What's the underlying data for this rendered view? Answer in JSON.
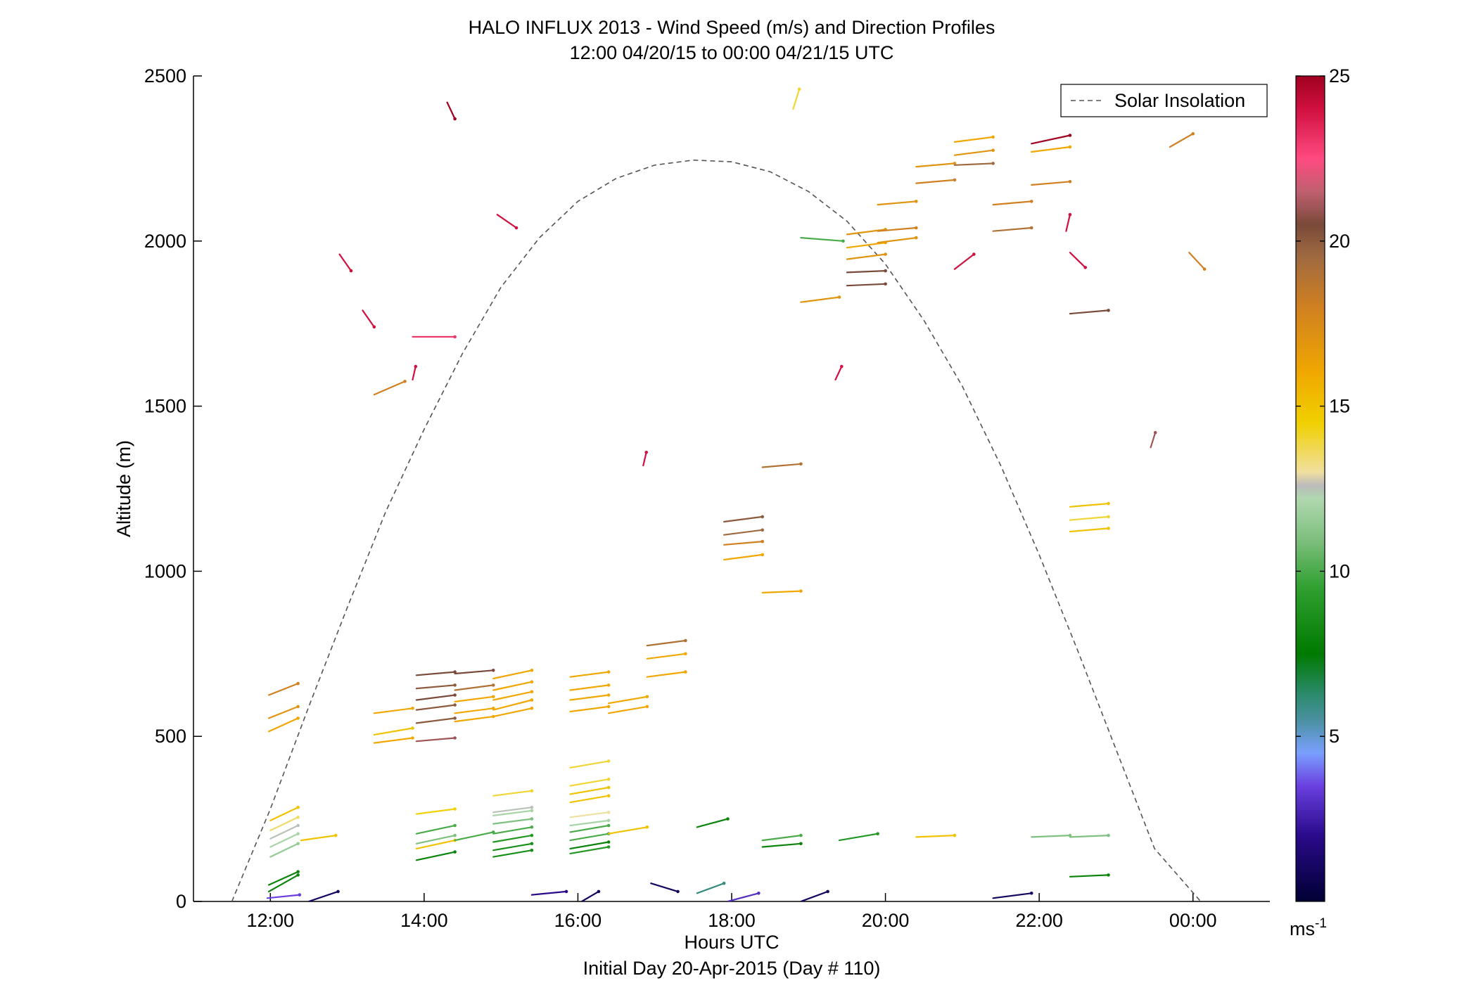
{
  "chart_data": {
    "type": "scatter",
    "title": "HALO INFLUX 2013 - Wind Speed (m/s) and Direction Profiles",
    "subtitle": "12:00 04/20/15 to 00:00 04/21/15  UTC",
    "xlabel": "Hours UTC",
    "xlabel2": "Initial Day 20-Apr-2015 (Day # 110)",
    "ylabel": "Altitude (m)",
    "xlim": [
      11.0,
      25.0
    ],
    "ylim": [
      0,
      2500
    ],
    "x_ticks": [
      {
        "value": 12,
        "label": "12:00"
      },
      {
        "value": 14,
        "label": "14:00"
      },
      {
        "value": 16,
        "label": "16:00"
      },
      {
        "value": 18,
        "label": "18:00"
      },
      {
        "value": 20,
        "label": "20:00"
      },
      {
        "value": 22,
        "label": "22:00"
      },
      {
        "value": 24,
        "label": "00:00"
      }
    ],
    "y_ticks": [
      {
        "value": 0,
        "label": "0"
      },
      {
        "value": 500,
        "label": "500"
      },
      {
        "value": 1000,
        "label": "1000"
      },
      {
        "value": 1500,
        "label": "1500"
      },
      {
        "value": 2000,
        "label": "2000"
      },
      {
        "value": 2500,
        "label": "2500"
      }
    ],
    "grid": false,
    "legend": {
      "position": "top-right",
      "entries": [
        {
          "name": "Solar Insolation",
          "style": "dashed",
          "color": "#666666"
        }
      ]
    },
    "colorbar": {
      "min": 0,
      "max": 25,
      "ticks": [
        {
          "value": 5,
          "label": "5"
        },
        {
          "value": 10,
          "label": "10"
        },
        {
          "value": 15,
          "label": "15"
        },
        {
          "value": 20,
          "label": "20"
        },
        {
          "value": 25,
          "label": "25"
        }
      ],
      "unit_label": "ms",
      "unit_exponent": "-1",
      "stops": [
        {
          "v": 0,
          "c": "#000033"
        },
        {
          "v": 2,
          "c": "#2a0a8a"
        },
        {
          "v": 3.5,
          "c": "#6a40e0"
        },
        {
          "v": 4.5,
          "c": "#7aa0ff"
        },
        {
          "v": 5.5,
          "c": "#4a90a0"
        },
        {
          "v": 6.3,
          "c": "#2a8a6a"
        },
        {
          "v": 7.5,
          "c": "#007a00"
        },
        {
          "v": 9.5,
          "c": "#30a030"
        },
        {
          "v": 11,
          "c": "#80c080"
        },
        {
          "v": 12.2,
          "c": "#b0d8b0"
        },
        {
          "v": 12.6,
          "c": "#bbbbbb"
        },
        {
          "v": 13,
          "c": "#f0e0a0"
        },
        {
          "v": 14.5,
          "c": "#f0d000"
        },
        {
          "v": 16,
          "c": "#f0a800"
        },
        {
          "v": 18,
          "c": "#d08020"
        },
        {
          "v": 19.5,
          "c": "#a06a40"
        },
        {
          "v": 20.5,
          "c": "#7a4a3a"
        },
        {
          "v": 21.5,
          "c": "#c06070"
        },
        {
          "v": 22.5,
          "c": "#ff4a80"
        },
        {
          "v": 24,
          "c": "#d01040"
        },
        {
          "v": 25,
          "c": "#a00020"
        }
      ]
    },
    "solar_insolation": {
      "name": "Solar Insolation",
      "points": [
        [
          11.5,
          0
        ],
        [
          12.0,
          280
        ],
        [
          12.5,
          590
        ],
        [
          13.0,
          890
        ],
        [
          13.5,
          1180
        ],
        [
          14.0,
          1430
        ],
        [
          14.5,
          1660
        ],
        [
          15.0,
          1860
        ],
        [
          15.5,
          2010
        ],
        [
          16.0,
          2120
        ],
        [
          16.5,
          2190
        ],
        [
          17.0,
          2230
        ],
        [
          17.5,
          2245
        ],
        [
          18.0,
          2240
        ],
        [
          18.5,
          2210
        ],
        [
          19.0,
          2150
        ],
        [
          19.5,
          2060
        ],
        [
          20.0,
          1930
        ],
        [
          20.5,
          1760
        ],
        [
          21.0,
          1560
        ],
        [
          21.5,
          1320
        ],
        [
          22.0,
          1050
        ],
        [
          22.5,
          760
        ],
        [
          23.0,
          460
        ],
        [
          23.5,
          160
        ],
        [
          24.1,
          0
        ]
      ]
    },
    "wind_vectors": [
      {
        "t": 11.96,
        "alt": 10,
        "u": 0.42,
        "v": 10,
        "spd": 3.5
      },
      {
        "t": 11.98,
        "alt": 30,
        "u": 0.38,
        "v": 50,
        "spd": 8
      },
      {
        "t": 11.98,
        "alt": 50,
        "u": 0.38,
        "v": 40,
        "spd": 8
      },
      {
        "t": 12.0,
        "alt": 135,
        "u": 0.36,
        "v": 40,
        "spd": 11.5
      },
      {
        "t": 12.0,
        "alt": 165,
        "u": 0.36,
        "v": 40,
        "spd": 12
      },
      {
        "t": 12.0,
        "alt": 190,
        "u": 0.36,
        "v": 40,
        "spd": 12.5
      },
      {
        "t": 12.0,
        "alt": 215,
        "u": 0.36,
        "v": 40,
        "spd": 13.5
      },
      {
        "t": 12.0,
        "alt": 245,
        "u": 0.36,
        "v": 40,
        "spd": 15
      },
      {
        "t": 12.4,
        "alt": 185,
        "u": 0.45,
        "v": 15,
        "spd": 15
      },
      {
        "t": 11.98,
        "alt": 515,
        "u": 0.38,
        "v": 40,
        "spd": 16
      },
      {
        "t": 11.98,
        "alt": 555,
        "u": 0.38,
        "v": 35,
        "spd": 17
      },
      {
        "t": 11.98,
        "alt": 625,
        "u": 0.38,
        "v": 35,
        "spd": 18
      },
      {
        "t": 12.5,
        "alt": 0,
        "u": 0.38,
        "v": 30,
        "spd": 1
      },
      {
        "t": 13.35,
        "alt": 480,
        "u": 0.5,
        "v": 15,
        "spd": 16
      },
      {
        "t": 13.35,
        "alt": 505,
        "u": 0.5,
        "v": 20,
        "spd": 15
      },
      {
        "t": 13.35,
        "alt": 570,
        "u": 0.5,
        "v": 15,
        "spd": 16
      },
      {
        "t": 13.35,
        "alt": 1535,
        "u": 0.4,
        "v": 40,
        "spd": 18
      },
      {
        "t": 12.9,
        "alt": 1960,
        "u": 0.15,
        "v": -50,
        "spd": 24
      },
      {
        "t": 13.2,
        "alt": 1790,
        "u": 0.15,
        "v": -50,
        "spd": 24
      },
      {
        "t": 13.85,
        "alt": 1580,
        "u": 0.04,
        "v": 40,
        "spd": 24
      },
      {
        "t": 13.9,
        "alt": 125,
        "u": 0.5,
        "v": 25,
        "spd": 8
      },
      {
        "t": 13.9,
        "alt": 160,
        "u": 0.5,
        "v": 25,
        "spd": 15
      },
      {
        "t": 13.9,
        "alt": 175,
        "u": 0.5,
        "v": 25,
        "spd": 11
      },
      {
        "t": 13.9,
        "alt": 205,
        "u": 0.5,
        "v": 25,
        "spd": 10
      },
      {
        "t": 13.9,
        "alt": 265,
        "u": 0.5,
        "v": 15,
        "spd": 14.5
      },
      {
        "t": 13.9,
        "alt": 485,
        "u": 0.5,
        "v": 10,
        "spd": 21
      },
      {
        "t": 13.9,
        "alt": 540,
        "u": 0.5,
        "v": 15,
        "spd": 20
      },
      {
        "t": 13.9,
        "alt": 580,
        "u": 0.5,
        "v": 15,
        "spd": 20
      },
      {
        "t": 13.9,
        "alt": 610,
        "u": 0.5,
        "v": 15,
        "spd": 20.5
      },
      {
        "t": 13.9,
        "alt": 645,
        "u": 0.5,
        "v": 10,
        "spd": 20
      },
      {
        "t": 13.9,
        "alt": 685,
        "u": 0.5,
        "v": 10,
        "spd": 20.5
      },
      {
        "t": 13.85,
        "alt": 1710,
        "u": 0.55,
        "v": 0,
        "spd": 23
      },
      {
        "t": 14.3,
        "alt": 2420,
        "u": 0.1,
        "v": -50,
        "spd": 25
      },
      {
        "t": 14.4,
        "alt": 185,
        "u": 0.5,
        "v": 25,
        "spd": 10
      },
      {
        "t": 14.4,
        "alt": 545,
        "u": 0.5,
        "v": 15,
        "spd": 16
      },
      {
        "t": 14.4,
        "alt": 570,
        "u": 0.5,
        "v": 15,
        "spd": 16
      },
      {
        "t": 14.4,
        "alt": 605,
        "u": 0.5,
        "v": 15,
        "spd": 16
      },
      {
        "t": 14.4,
        "alt": 640,
        "u": 0.5,
        "v": 15,
        "spd": 19
      },
      {
        "t": 14.4,
        "alt": 690,
        "u": 0.5,
        "v": 10,
        "spd": 20.5
      },
      {
        "t": 14.9,
        "alt": 135,
        "u": 0.5,
        "v": 20,
        "spd": 8.5
      },
      {
        "t": 14.9,
        "alt": 155,
        "u": 0.5,
        "v": 20,
        "spd": 8.5
      },
      {
        "t": 14.9,
        "alt": 180,
        "u": 0.5,
        "v": 20,
        "spd": 9
      },
      {
        "t": 14.9,
        "alt": 205,
        "u": 0.5,
        "v": 20,
        "spd": 10
      },
      {
        "t": 14.9,
        "alt": 235,
        "u": 0.5,
        "v": 15,
        "spd": 11
      },
      {
        "t": 14.9,
        "alt": 260,
        "u": 0.5,
        "v": 15,
        "spd": 12
      },
      {
        "t": 14.9,
        "alt": 270,
        "u": 0.5,
        "v": 15,
        "spd": 12.5
      },
      {
        "t": 14.9,
        "alt": 320,
        "u": 0.5,
        "v": 15,
        "spd": 14
      },
      {
        "t": 14.9,
        "alt": 560,
        "u": 0.5,
        "v": 25,
        "spd": 16
      },
      {
        "t": 14.9,
        "alt": 580,
        "u": 0.5,
        "v": 30,
        "spd": 16
      },
      {
        "t": 14.9,
        "alt": 610,
        "u": 0.5,
        "v": 25,
        "spd": 16
      },
      {
        "t": 14.9,
        "alt": 640,
        "u": 0.5,
        "v": 25,
        "spd": 16
      },
      {
        "t": 14.9,
        "alt": 675,
        "u": 0.5,
        "v": 25,
        "spd": 16
      },
      {
        "t": 14.95,
        "alt": 2080,
        "u": 0.25,
        "v": -40,
        "spd": 24
      },
      {
        "t": 15.4,
        "alt": 20,
        "u": 0.45,
        "v": 10,
        "spd": 2
      },
      {
        "t": 16.05,
        "alt": 0,
        "u": 0.22,
        "v": 30,
        "spd": 1
      },
      {
        "t": 15.9,
        "alt": 145,
        "u": 0.5,
        "v": 20,
        "spd": 9
      },
      {
        "t": 15.9,
        "alt": 160,
        "u": 0.5,
        "v": 20,
        "spd": 8
      },
      {
        "t": 15.9,
        "alt": 185,
        "u": 0.5,
        "v": 20,
        "spd": 10
      },
      {
        "t": 15.9,
        "alt": 210,
        "u": 0.5,
        "v": 20,
        "spd": 10
      },
      {
        "t": 15.9,
        "alt": 230,
        "u": 0.5,
        "v": 15,
        "spd": 12
      },
      {
        "t": 15.9,
        "alt": 255,
        "u": 0.5,
        "v": 15,
        "spd": 13
      },
      {
        "t": 15.9,
        "alt": 300,
        "u": 0.5,
        "v": 20,
        "spd": 15
      },
      {
        "t": 15.9,
        "alt": 325,
        "u": 0.5,
        "v": 20,
        "spd": 15
      },
      {
        "t": 15.9,
        "alt": 350,
        "u": 0.5,
        "v": 20,
        "spd": 14
      },
      {
        "t": 15.9,
        "alt": 405,
        "u": 0.5,
        "v": 20,
        "spd": 14
      },
      {
        "t": 15.9,
        "alt": 575,
        "u": 0.5,
        "v": 15,
        "spd": 16
      },
      {
        "t": 15.9,
        "alt": 610,
        "u": 0.5,
        "v": 15,
        "spd": 16
      },
      {
        "t": 15.9,
        "alt": 640,
        "u": 0.5,
        "v": 15,
        "spd": 16
      },
      {
        "t": 15.9,
        "alt": 680,
        "u": 0.5,
        "v": 15,
        "spd": 16
      },
      {
        "t": 16.4,
        "alt": 205,
        "u": 0.5,
        "v": 20,
        "spd": 15
      },
      {
        "t": 16.4,
        "alt": 570,
        "u": 0.5,
        "v": 20,
        "spd": 16
      },
      {
        "t": 16.4,
        "alt": 600,
        "u": 0.5,
        "v": 20,
        "spd": 16
      },
      {
        "t": 16.85,
        "alt": 1320,
        "u": 0.04,
        "v": 40,
        "spd": 24
      },
      {
        "t": 16.9,
        "alt": 680,
        "u": 0.5,
        "v": 15,
        "spd": 16
      },
      {
        "t": 16.9,
        "alt": 735,
        "u": 0.5,
        "v": 15,
        "spd": 16
      },
      {
        "t": 16.9,
        "alt": 775,
        "u": 0.5,
        "v": 15,
        "spd": 19
      },
      {
        "t": 16.95,
        "alt": 55,
        "u": 0.35,
        "v": -25,
        "spd": 1
      },
      {
        "t": 17.55,
        "alt": 225,
        "u": 0.4,
        "v": 25,
        "spd": 8
      },
      {
        "t": 17.55,
        "alt": 25,
        "u": 0.35,
        "v": 30,
        "spd": 6
      },
      {
        "t": 17.95,
        "alt": 0,
        "u": 0.4,
        "v": 25,
        "spd": 3
      },
      {
        "t": 17.9,
        "alt": 1035,
        "u": 0.5,
        "v": 15,
        "spd": 16
      },
      {
        "t": 17.9,
        "alt": 1080,
        "u": 0.5,
        "v": 10,
        "spd": 18
      },
      {
        "t": 17.9,
        "alt": 1110,
        "u": 0.5,
        "v": 15,
        "spd": 19.5
      },
      {
        "t": 17.9,
        "alt": 1150,
        "u": 0.5,
        "v": 15,
        "spd": 20
      },
      {
        "t": 18.4,
        "alt": 165,
        "u": 0.5,
        "v": 10,
        "spd": 8
      },
      {
        "t": 18.4,
        "alt": 185,
        "u": 0.5,
        "v": 15,
        "spd": 10
      },
      {
        "t": 18.4,
        "alt": 935,
        "u": 0.5,
        "v": 5,
        "spd": 16
      },
      {
        "t": 18.4,
        "alt": 1315,
        "u": 0.5,
        "v": 10,
        "spd": 19
      },
      {
        "t": 18.8,
        "alt": 2400,
        "u": 0.08,
        "v": 60,
        "spd": 14
      },
      {
        "t": 18.9,
        "alt": 0,
        "u": 0.35,
        "v": 30,
        "spd": 1
      },
      {
        "t": 18.9,
        "alt": 2010,
        "u": 0.55,
        "v": -10,
        "spd": 10
      },
      {
        "t": 18.9,
        "alt": 1815,
        "u": 0.5,
        "v": 15,
        "spd": 17
      },
      {
        "t": 19.4,
        "alt": 185,
        "u": 0.5,
        "v": 20,
        "spd": 9
      },
      {
        "t": 19.35,
        "alt": 1580,
        "u": 0.08,
        "v": 40,
        "spd": 24
      },
      {
        "t": 19.5,
        "alt": 1865,
        "u": 0.5,
        "v": 5,
        "spd": 20.5
      },
      {
        "t": 19.5,
        "alt": 1905,
        "u": 0.5,
        "v": 5,
        "spd": 20.5
      },
      {
        "t": 19.5,
        "alt": 1945,
        "u": 0.5,
        "v": 15,
        "spd": 17
      },
      {
        "t": 19.5,
        "alt": 1980,
        "u": 0.5,
        "v": 15,
        "spd": 16
      },
      {
        "t": 19.5,
        "alt": 2020,
        "u": 0.5,
        "v": 15,
        "spd": 17
      },
      {
        "t": 19.9,
        "alt": 1995,
        "u": 0.5,
        "v": 15,
        "spd": 17
      },
      {
        "t": 19.9,
        "alt": 2030,
        "u": 0.5,
        "v": 10,
        "spd": 18
      },
      {
        "t": 19.9,
        "alt": 2110,
        "u": 0.5,
        "v": 10,
        "spd": 17
      },
      {
        "t": 20.4,
        "alt": 195,
        "u": 0.5,
        "v": 5,
        "spd": 15
      },
      {
        "t": 20.4,
        "alt": 2175,
        "u": 0.5,
        "v": 10,
        "spd": 18
      },
      {
        "t": 20.4,
        "alt": 2225,
        "u": 0.5,
        "v": 10,
        "spd": 17
      },
      {
        "t": 20.9,
        "alt": 1915,
        "u": 0.25,
        "v": 45,
        "spd": 24
      },
      {
        "t": 20.9,
        "alt": 2230,
        "u": 0.5,
        "v": 5,
        "spd": 19.5
      },
      {
        "t": 20.9,
        "alt": 2260,
        "u": 0.5,
        "v": 15,
        "spd": 17
      },
      {
        "t": 20.9,
        "alt": 2300,
        "u": 0.5,
        "v": 15,
        "spd": 16
      },
      {
        "t": 21.4,
        "alt": 10,
        "u": 0.5,
        "v": 15,
        "spd": 1
      },
      {
        "t": 21.4,
        "alt": 2030,
        "u": 0.5,
        "v": 10,
        "spd": 19
      },
      {
        "t": 21.4,
        "alt": 2110,
        "u": 0.5,
        "v": 10,
        "spd": 18
      },
      {
        "t": 21.9,
        "alt": 195,
        "u": 0.5,
        "v": 5,
        "spd": 11
      },
      {
        "t": 21.9,
        "alt": 2170,
        "u": 0.5,
        "v": 10,
        "spd": 18
      },
      {
        "t": 21.9,
        "alt": 2270,
        "u": 0.5,
        "v": 15,
        "spd": 16
      },
      {
        "t": 21.9,
        "alt": 2295,
        "u": 0.5,
        "v": 25,
        "spd": 25
      },
      {
        "t": 22.35,
        "alt": 2030,
        "u": 0.05,
        "v": 50,
        "spd": 24
      },
      {
        "t": 22.4,
        "alt": 1965,
        "u": 0.2,
        "v": -45,
        "spd": 24
      },
      {
        "t": 22.4,
        "alt": 1780,
        "u": 0.5,
        "v": 10,
        "spd": 20.5
      },
      {
        "t": 22.4,
        "alt": 1120,
        "u": 0.5,
        "v": 10,
        "spd": 15
      },
      {
        "t": 22.4,
        "alt": 1155,
        "u": 0.5,
        "v": 10,
        "spd": 14
      },
      {
        "t": 22.4,
        "alt": 1195,
        "u": 0.5,
        "v": 10,
        "spd": 15
      },
      {
        "t": 22.4,
        "alt": 195,
        "u": 0.5,
        "v": 5,
        "spd": 11
      },
      {
        "t": 22.4,
        "alt": 75,
        "u": 0.5,
        "v": 5,
        "spd": 8
      },
      {
        "t": 23.45,
        "alt": 1375,
        "u": 0.06,
        "v": 45,
        "spd": 21
      },
      {
        "t": 23.7,
        "alt": 2285,
        "u": 0.3,
        "v": 40,
        "spd": 18
      },
      {
        "t": 23.95,
        "alt": 1965,
        "u": 0.2,
        "v": -50,
        "spd": 18
      }
    ]
  }
}
